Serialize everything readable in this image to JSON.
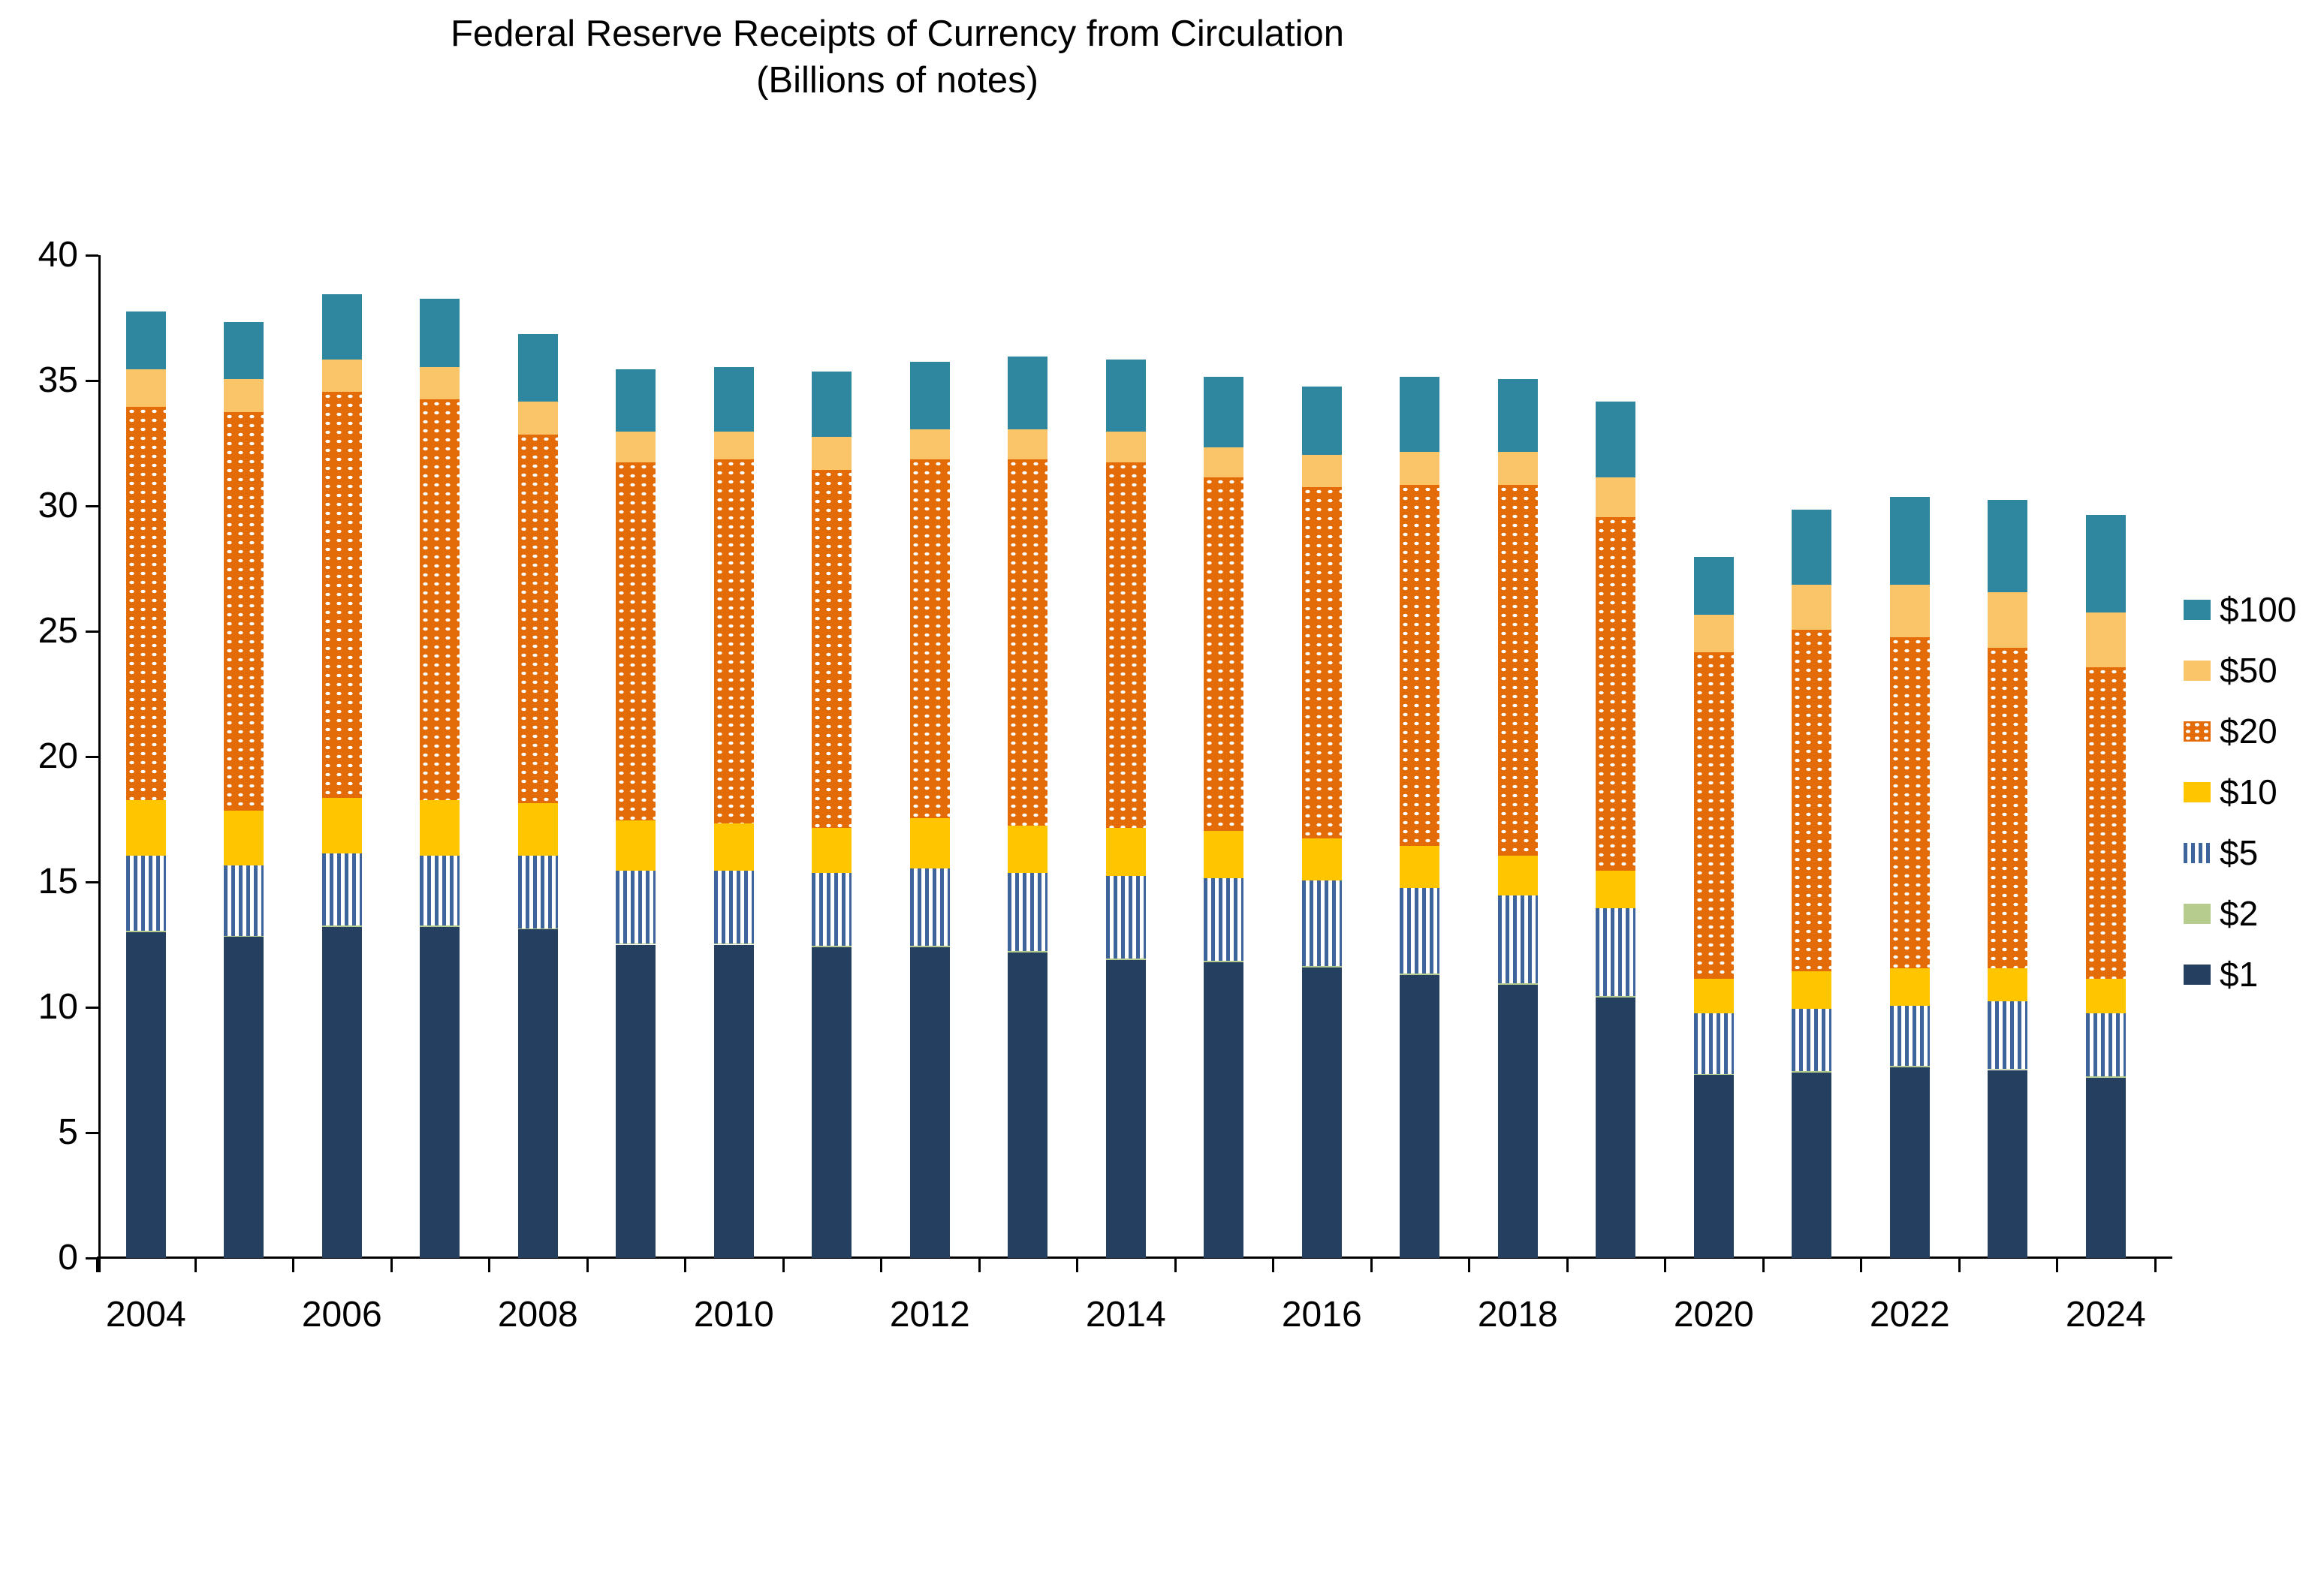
{
  "chart_data": {
    "type": "bar",
    "stacked": true,
    "title": "Federal Reserve Receipts of Currency from Circulation",
    "subtitle": "(Billions of notes)",
    "categories": [
      2004,
      2005,
      2006,
      2007,
      2008,
      2009,
      2010,
      2011,
      2012,
      2013,
      2014,
      2015,
      2016,
      2017,
      2018,
      2019,
      2020,
      2021,
      2022,
      2023,
      2024
    ],
    "x_axis_labeled_ticks": [
      "2004",
      "2006",
      "2008",
      "2010",
      "2012",
      "2014",
      "2016",
      "2018",
      "2020",
      "2022",
      "2024"
    ],
    "ylim": [
      0,
      40
    ],
    "y_ticks": [
      0,
      5,
      10,
      15,
      20,
      25,
      30,
      35,
      40
    ],
    "grid": false,
    "legend_position": "right",
    "stack_order_bottom_to_top": [
      "$1",
      "$2",
      "$5",
      "$10",
      "$20",
      "$50",
      "$100"
    ],
    "legend_order_top_to_bottom": [
      "$100",
      "$50",
      "$20",
      "$10",
      "$5",
      "$2",
      "$1"
    ],
    "series": [
      {
        "name": "$1",
        "color": "#243F5F",
        "pattern": "solid",
        "values": [
          13.0,
          12.8,
          13.2,
          13.2,
          13.1,
          12.5,
          12.5,
          12.4,
          12.4,
          12.2,
          11.9,
          11.8,
          11.6,
          11.3,
          10.9,
          10.4,
          7.3,
          7.4,
          7.6,
          7.5,
          7.2
        ]
      },
      {
        "name": "$2",
        "color": "#B5CC8E",
        "pattern": "solid",
        "values": [
          0.05,
          0.05,
          0.05,
          0.05,
          0.05,
          0.05,
          0.05,
          0.05,
          0.05,
          0.05,
          0.05,
          0.05,
          0.05,
          0.05,
          0.05,
          0.05,
          0.05,
          0.05,
          0.05,
          0.05,
          0.05
        ]
      },
      {
        "name": "$5",
        "color": "#FFFFFF",
        "pattern": "vstripes",
        "stripe_color": "#3D649B",
        "values": [
          3.0,
          2.8,
          2.9,
          2.8,
          2.9,
          2.9,
          2.9,
          2.9,
          3.1,
          3.1,
          3.3,
          3.3,
          3.4,
          3.4,
          3.5,
          3.5,
          2.4,
          2.5,
          2.4,
          2.7,
          2.5
        ]
      },
      {
        "name": "$10",
        "color": "#FFC600",
        "pattern": "solid",
        "values": [
          2.2,
          2.2,
          2.2,
          2.2,
          2.1,
          2.0,
          1.9,
          1.8,
          2.0,
          1.9,
          1.9,
          1.9,
          1.7,
          1.7,
          1.6,
          1.5,
          1.4,
          1.5,
          1.5,
          1.3,
          1.4
        ]
      },
      {
        "name": "$20",
        "color": "#E36C09",
        "pattern": "dots",
        "dot_color": "#FFFFFF",
        "values": [
          15.7,
          15.9,
          16.2,
          16.0,
          14.7,
          14.3,
          14.5,
          14.3,
          14.3,
          14.6,
          14.6,
          14.1,
          14.0,
          14.4,
          14.8,
          14.1,
          13.0,
          13.6,
          13.2,
          12.8,
          12.4
        ]
      },
      {
        "name": "$50",
        "color": "#FAC469",
        "pattern": "solid",
        "values": [
          1.5,
          1.3,
          1.3,
          1.3,
          1.3,
          1.2,
          1.1,
          1.3,
          1.2,
          1.2,
          1.2,
          1.2,
          1.3,
          1.3,
          1.3,
          1.6,
          1.5,
          1.8,
          2.1,
          2.2,
          2.2
        ]
      },
      {
        "name": "$100",
        "color": "#2E879E",
        "pattern": "solid",
        "values": [
          2.3,
          2.3,
          2.6,
          2.7,
          2.7,
          2.5,
          2.6,
          2.6,
          2.7,
          2.9,
          2.9,
          2.8,
          2.7,
          3.0,
          2.9,
          3.0,
          2.3,
          3.0,
          3.5,
          3.7,
          3.9
        ]
      }
    ]
  }
}
